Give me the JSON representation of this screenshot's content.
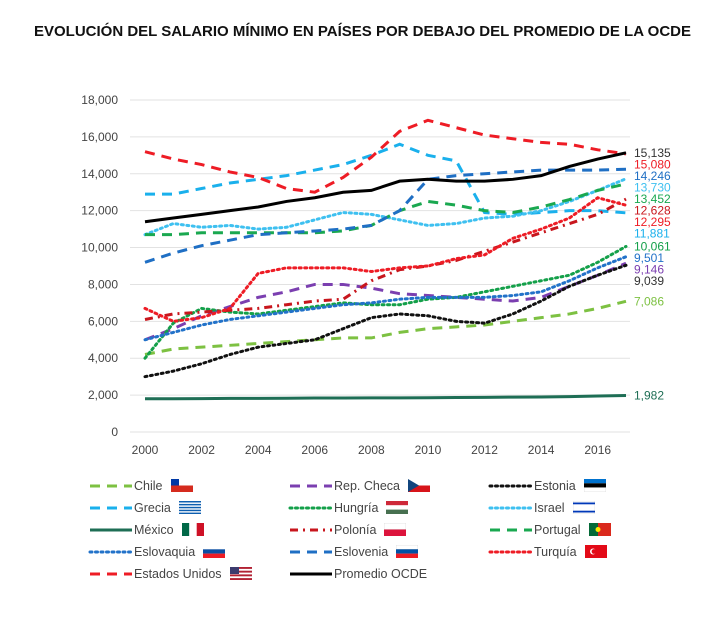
{
  "chart_data": {
    "type": "line",
    "title": "EVOLUCIÓN DEL SALARIO MÍNIMO EN PAÍSES POR DEBAJO DEL PROMEDIO DE LA OCDE",
    "xlabel": "",
    "ylabel": "",
    "x": [
      2000,
      2001,
      2002,
      2003,
      2004,
      2005,
      2006,
      2007,
      2008,
      2009,
      2010,
      2011,
      2012,
      2013,
      2014,
      2015,
      2016,
      2017
    ],
    "xticks": [
      "2000",
      "2002",
      "2004",
      "2006",
      "2008",
      "2010",
      "2012",
      "2014",
      "2016"
    ],
    "yticks": [
      "0",
      "2,000",
      "4,000",
      "6,000",
      "8,000",
      "10,000",
      "12,000",
      "14,000",
      "16,000",
      "18,000"
    ],
    "ylim": [
      0,
      18000
    ],
    "grid": true,
    "legend_placement": "bottom",
    "series": [
      {
        "name": "Chile",
        "color": "#7dc142",
        "dash": "dash",
        "end_label": "7,086",
        "values": [
          4200,
          4500,
          4600,
          4700,
          4800,
          4900,
          5000,
          5100,
          5100,
          5400,
          5600,
          5700,
          5800,
          6000,
          6200,
          6400,
          6700,
          7086
        ]
      },
      {
        "name": "Rep. Checa",
        "color": "#7b3fb0",
        "dash": "dash",
        "end_label": "9,146",
        "values": [
          5000,
          5600,
          6300,
          6800,
          7300,
          7600,
          8000,
          8000,
          7800,
          7500,
          7400,
          7300,
          7200,
          7100,
          7300,
          7900,
          8500,
          9146
        ]
      },
      {
        "name": "Estonia",
        "color": "#111111",
        "dash": "dot",
        "end_label": "9,039",
        "values": [
          3000,
          3300,
          3700,
          4200,
          4600,
          4800,
          5000,
          5600,
          6200,
          6400,
          6300,
          6000,
          5900,
          6400,
          7100,
          7900,
          8500,
          9039
        ]
      },
      {
        "name": "Grecia",
        "color": "#1ab0ec",
        "dash": "dash",
        "end_label": "11,881",
        "values": [
          12900,
          12900,
          13200,
          13500,
          13700,
          13900,
          14200,
          14500,
          15000,
          15600,
          15000,
          14700,
          11900,
          11800,
          11900,
          12000,
          12000,
          11881
        ]
      },
      {
        "name": "Hungría",
        "color": "#14a04a",
        "dash": "dot",
        "end_label": "10,061",
        "values": [
          4000,
          5900,
          6700,
          6500,
          6400,
          6600,
          6800,
          7000,
          6900,
          6900,
          7200,
          7300,
          7600,
          7900,
          8200,
          8500,
          9200,
          10061
        ]
      },
      {
        "name": "Israel",
        "color": "#3ec0f0",
        "dash": "dot",
        "end_label": "13,730",
        "values": [
          10700,
          11300,
          11100,
          11200,
          11000,
          11100,
          11500,
          11900,
          11800,
          11500,
          11200,
          11300,
          11600,
          11700,
          12000,
          12500,
          13100,
          13730
        ]
      },
      {
        "name": "México",
        "color": "#1e6e55",
        "dash": "solid",
        "end_label": "1,982",
        "values": [
          1800,
          1800,
          1810,
          1820,
          1820,
          1830,
          1840,
          1840,
          1850,
          1850,
          1860,
          1870,
          1880,
          1890,
          1900,
          1920,
          1950,
          1982
        ]
      },
      {
        "name": "Polonía",
        "color": "#c8161d",
        "dash": "dashdot",
        "end_label": "12,628",
        "values": [
          6100,
          6400,
          6500,
          6600,
          6700,
          6900,
          7100,
          7200,
          8200,
          8800,
          9000,
          9300,
          9800,
          10300,
          10800,
          11300,
          11800,
          12628
        ]
      },
      {
        "name": "Portugal",
        "color": "#1aa850",
        "dash": "dash",
        "end_label": "13,452",
        "values": [
          10700,
          10700,
          10800,
          10800,
          10800,
          10800,
          10800,
          10900,
          11200,
          12000,
          12500,
          12300,
          12000,
          11900,
          12200,
          12600,
          13100,
          13452
        ]
      },
      {
        "name": "Eslovaquia",
        "color": "#2272c9",
        "dash": "dot",
        "end_label": "9,501",
        "values": [
          5000,
          5400,
          5800,
          6100,
          6300,
          6500,
          6700,
          6900,
          7000,
          7200,
          7300,
          7300,
          7300,
          7400,
          7600,
          8200,
          8900,
          9501
        ]
      },
      {
        "name": "Eslovenia",
        "color": "#1f6fc4",
        "dash": "dash",
        "end_label": "14,246",
        "values": [
          9200,
          9700,
          10100,
          10400,
          10700,
          10800,
          10900,
          11000,
          11200,
          12000,
          13700,
          13900,
          14000,
          14100,
          14200,
          14200,
          14200,
          14246
        ]
      },
      {
        "name": "Turquía",
        "color": "#ee1c25",
        "dash": "dot",
        "end_label": "12,295",
        "values": [
          6700,
          6000,
          6200,
          6700,
          8600,
          8900,
          8900,
          8900,
          8700,
          8900,
          9000,
          9400,
          9600,
          10500,
          11000,
          11600,
          12700,
          12295
        ]
      },
      {
        "name": "Estados Unidos",
        "color": "#ee1c25",
        "dash": "dash",
        "end_label": "15,080",
        "values": [
          15200,
          14800,
          14500,
          14100,
          13800,
          13200,
          13000,
          13800,
          14900,
          16300,
          16900,
          16500,
          16100,
          15900,
          15700,
          15600,
          15300,
          15080
        ]
      },
      {
        "name": "Promedio OCDE",
        "color": "#000000",
        "dash": "solid",
        "end_label": "15,135",
        "values": [
          11400,
          11600,
          11800,
          12000,
          12200,
          12500,
          12700,
          13000,
          13100,
          13600,
          13700,
          13600,
          13600,
          13700,
          13900,
          14400,
          14800,
          15135
        ]
      }
    ]
  },
  "legend_order": [
    "Chile",
    "Rep. Checa",
    "Estonia",
    "Grecia",
    "Hungría",
    "Israel",
    "México",
    "Polonía",
    "Portugal",
    "Eslovaquia",
    "Eslovenia",
    "Turquía",
    "Estados Unidos",
    "Promedio OCDE"
  ]
}
